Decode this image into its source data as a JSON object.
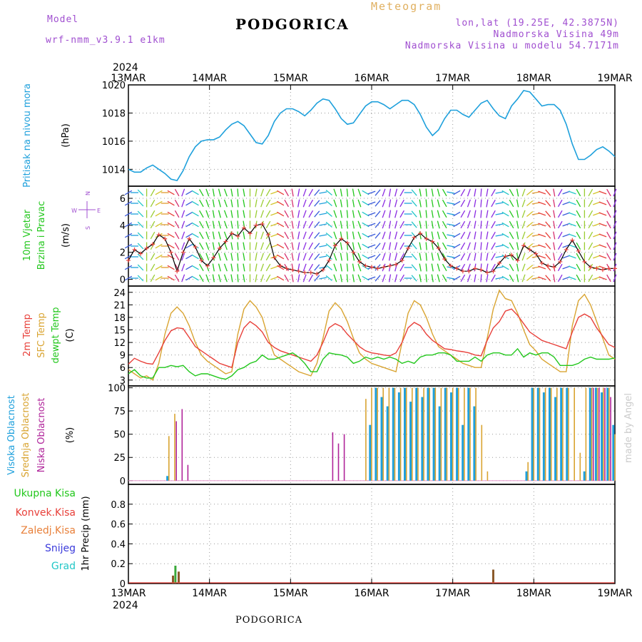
{
  "header": {
    "model_label": "Model",
    "model_name": "wrf-nmm_v3.9.1 e1km",
    "station": "PODGORICA",
    "product": "Meteogram",
    "coords": "lon,lat (19.25E, 42.3875N)",
    "elevation": "Nadmorska Visina 49m",
    "model_elevation": "Nadmorska Visina u modelu 54.7171m",
    "footer_station": "PODGORICA",
    "credit": "made by Angel"
  },
  "colors": {
    "pressure": "#1ea0dc",
    "temp2m": "#e8403a",
    "sfc_temp": "#d9a431",
    "dewpt": "#22c71c",
    "high_cloud": "#1ea0dc",
    "mid_cloud": "#d9a431",
    "low_cloud": "#b0249a",
    "model_label": "#a04fd0",
    "product": "#e0b060"
  },
  "chart_data": [
    {
      "type": "line",
      "panel": "pressure",
      "year": "2024",
      "x_tick_labels": [
        "13MAR",
        "14MAR",
        "15MAR",
        "16MAR",
        "17MAR",
        "18MAR",
        "19MAR"
      ],
      "ylabel_left": "Pritisak na nivou mora",
      "ylabel_unit": "(hPa)",
      "ylim": [
        1012.8,
        1020
      ],
      "y_ticks": [
        1014,
        1016,
        1018,
        1020
      ],
      "grid": true,
      "series": [
        {
          "values": [
            1014.0,
            1013.8,
            1013.8,
            1014.1,
            1014.3,
            1014.0,
            1013.7,
            1013.3,
            1013.2,
            1013.9,
            1014.9,
            1015.6,
            1016.0,
            1016.1,
            1016.1,
            1016.3,
            1016.8,
            1017.2,
            1017.4,
            1017.1,
            1016.5,
            1015.9,
            1015.8,
            1016.4,
            1017.4,
            1018.0,
            1018.3,
            1018.3,
            1018.1,
            1017.8,
            1018.2,
            1018.7,
            1019.0,
            1018.9,
            1018.3,
            1017.6,
            1017.2,
            1017.3,
            1017.9,
            1018.5,
            1018.8,
            1018.8,
            1018.6,
            1018.3,
            1018.6,
            1018.9,
            1018.9,
            1018.6,
            1017.9,
            1017.0,
            1016.4,
            1016.8,
            1017.6,
            1018.2,
            1018.2,
            1017.9,
            1017.7,
            1018.2,
            1018.7,
            1018.9,
            1018.3,
            1017.8,
            1017.6,
            1018.5,
            1019.0,
            1019.6,
            1019.5,
            1019.0,
            1018.5,
            1018.6,
            1018.6,
            1018.2,
            1017.2,
            1015.8,
            1014.7,
            1014.7,
            1015.0,
            1015.4,
            1015.6,
            1015.3,
            1014.9
          ]
        }
      ]
    },
    {
      "type": "line",
      "panel": "wind",
      "ylabel_left": [
        "10m Vjetar",
        "Brzina i Pravac"
      ],
      "ylabel_unit": "(m/s)",
      "compass_labels": {
        "n": "N",
        "s": "S",
        "e": "E",
        "w": "W"
      },
      "ylim": [
        -0.5,
        6.9
      ],
      "y_ticks": [
        0,
        2,
        4,
        6
      ],
      "grid": true,
      "series": [
        {
          "name": "10m wind speed",
          "values": [
            1.4,
            2.2,
            1.9,
            2.3,
            2.6,
            3.3,
            3.0,
            2.0,
            0.6,
            2.0,
            3.0,
            2.4,
            1.4,
            1.0,
            1.6,
            2.3,
            2.8,
            3.4,
            3.2,
            3.8,
            3.4,
            4.0,
            4.1,
            3.3,
            1.6,
            1.0,
            0.8,
            0.7,
            0.6,
            0.5,
            0.5,
            0.4,
            0.7,
            1.4,
            2.5,
            3.0,
            2.7,
            2.0,
            1.3,
            1.0,
            0.9,
            0.8,
            0.9,
            1.0,
            1.1,
            1.4,
            2.3,
            3.1,
            3.4,
            3.0,
            2.8,
            2.3,
            1.5,
            1.0,
            0.8,
            0.6,
            0.6,
            0.8,
            0.7,
            0.5,
            0.6,
            1.2,
            1.7,
            1.8,
            1.4,
            2.5,
            2.2,
            1.9,
            1.2,
            1.0,
            0.9,
            1.3,
            2.2,
            2.9,
            2.1,
            1.3,
            0.9,
            0.8,
            0.7,
            0.8,
            0.8
          ]
        },
        {
          "name": "10m wind direction (deg)",
          "values": [
            60,
            90,
            135,
            180,
            210,
            240,
            270,
            300,
            330,
            20,
            60,
            120,
            150,
            160,
            170,
            165,
            160,
            170,
            175,
            170,
            180,
            190,
            200,
            210,
            250,
            300,
            330,
            350,
            10,
            20,
            30,
            40,
            80,
            130,
            160,
            170,
            175,
            170,
            160,
            120,
            70,
            40,
            20,
            10,
            15,
            30,
            90,
            140,
            170,
            175,
            170,
            165,
            150,
            100,
            60,
            30,
            20,
            10,
            5,
            10,
            30,
            80,
            120,
            150,
            170,
            200,
            230,
            260,
            290,
            320,
            350,
            30,
            70,
            110,
            150,
            180,
            210,
            250,
            290,
            330,
            20
          ]
        }
      ]
    },
    {
      "type": "line",
      "panel": "temperature",
      "ylabel_left": [
        "2m Temp",
        "SFC Temp",
        "dewpt Temp"
      ],
      "ylabel_unit": "(C)",
      "ylim": [
        1.6,
        25.5
      ],
      "y_ticks": [
        3,
        6,
        9,
        12,
        15,
        18,
        21,
        24
      ],
      "grid": true,
      "series": [
        {
          "name": "2m Temp",
          "values": [
            6.8,
            8.2,
            7.5,
            7.0,
            6.8,
            9.5,
            12.5,
            14.8,
            15.5,
            15.3,
            13.2,
            11.0,
            10.0,
            9.0,
            8.0,
            7.0,
            6.5,
            6.0,
            12.0,
            15.5,
            17.0,
            16.0,
            14.5,
            12.0,
            10.8,
            10.0,
            9.5,
            9.0,
            8.5,
            8.0,
            7.5,
            9.0,
            12.0,
            15.5,
            16.5,
            15.8,
            14.0,
            12.5,
            11.0,
            10.0,
            9.5,
            9.3,
            9.0,
            8.8,
            9.5,
            12.0,
            15.5,
            16.8,
            16.0,
            14.0,
            12.5,
            11.5,
            10.5,
            10.3,
            10.0,
            9.8,
            9.5,
            9.0,
            8.8,
            12.5,
            15.5,
            17.0,
            19.5,
            20.0,
            18.5,
            16.5,
            14.5,
            13.5,
            12.5,
            12.0,
            11.5,
            11.0,
            10.5,
            14.5,
            18.0,
            18.8,
            18.0,
            15.5,
            13.5,
            11.5,
            10.8
          ]
        },
        {
          "name": "SFC Temp",
          "values": [
            5.5,
            4.5,
            3.5,
            4.0,
            3.0,
            7.0,
            14.0,
            19.0,
            20.5,
            19.0,
            16.0,
            12.0,
            9.0,
            7.5,
            6.5,
            5.5,
            4.5,
            5.0,
            14.0,
            20.0,
            22.0,
            20.5,
            18.0,
            13.0,
            9.0,
            8.0,
            7.0,
            6.0,
            5.0,
            4.5,
            4.0,
            7.0,
            13.0,
            19.5,
            21.5,
            20.0,
            17.0,
            13.0,
            9.5,
            8.0,
            7.0,
            6.5,
            6.0,
            5.5,
            5.0,
            12.0,
            19.0,
            22.0,
            21.0,
            18.0,
            14.0,
            11.0,
            10.0,
            9.0,
            8.0,
            7.0,
            6.5,
            6.0,
            6.0,
            13.0,
            20.0,
            24.5,
            22.5,
            22.0,
            19.0,
            15.0,
            11.5,
            10.0,
            8.0,
            7.0,
            6.0,
            5.0,
            5.0,
            16.0,
            22.0,
            23.5,
            21.0,
            17.0,
            13.0,
            9.0,
            8.0
          ]
        },
        {
          "name": "dewpt Temp",
          "values": [
            4.5,
            5.5,
            4.0,
            3.5,
            3.5,
            6.0,
            6.0,
            6.5,
            6.2,
            6.5,
            5.0,
            4.0,
            4.5,
            4.5,
            4.0,
            3.5,
            3.2,
            4.0,
            5.5,
            6.0,
            7.0,
            7.5,
            9.0,
            8.0,
            8.0,
            8.5,
            9.0,
            9.5,
            8.5,
            7.0,
            5.0,
            5.0,
            8.0,
            9.5,
            9.2,
            9.0,
            8.5,
            7.0,
            7.5,
            8.5,
            8.0,
            8.5,
            8.0,
            8.5,
            8.0,
            7.0,
            7.5,
            7.0,
            8.5,
            9.0,
            9.0,
            9.5,
            9.5,
            9.0,
            7.5,
            7.5,
            7.5,
            8.5,
            7.5,
            9.0,
            9.5,
            9.5,
            9.0,
            9.0,
            10.5,
            8.5,
            9.5,
            9.0,
            9.5,
            9.5,
            8.5,
            6.5,
            6.5,
            6.5,
            7.0,
            8.0,
            8.5,
            8.0,
            8.0,
            8.0,
            8.3
          ]
        }
      ]
    },
    {
      "type": "bar",
      "panel": "clouds",
      "ylabel_left": [
        "Visoka Oblacnost",
        "Srednja Oblacnost",
        "Niska Oblacnost"
      ],
      "ylabel_unit": "(%)",
      "ylim": [
        -4,
        102
      ],
      "y_ticks": [
        0,
        25,
        50,
        75,
        100
      ],
      "grid": true,
      "series": [
        {
          "name": "Visoka Oblacnost",
          "values": [
            0,
            0,
            0,
            0,
            0,
            0,
            0,
            5,
            0,
            0,
            0,
            0,
            0,
            0,
            0,
            0,
            0,
            0,
            0,
            0,
            0,
            0,
            0,
            0,
            0,
            0,
            0,
            0,
            0,
            0,
            0,
            0,
            0,
            0,
            0,
            0,
            0,
            0,
            0,
            0,
            0,
            0,
            60,
            100,
            90,
            80,
            100,
            95,
            100,
            85,
            100,
            90,
            100,
            100,
            80,
            100,
            95,
            100,
            60,
            100,
            80,
            0,
            0,
            0,
            0,
            0,
            0,
            0,
            0,
            10,
            100,
            100,
            95,
            100,
            90,
            100,
            100,
            0,
            0,
            10,
            100,
            100,
            95,
            100,
            60
          ]
        },
        {
          "name": "Srednja Oblacnost",
          "values": [
            0,
            0,
            0,
            0,
            0,
            0,
            0,
            48,
            72,
            0,
            0,
            0,
            0,
            0,
            0,
            0,
            0,
            0,
            0,
            0,
            0,
            0,
            0,
            0,
            0,
            0,
            0,
            0,
            0,
            0,
            0,
            0,
            0,
            0,
            0,
            0,
            0,
            0,
            0,
            0,
            0,
            88,
            100,
            100,
            100,
            100,
            100,
            100,
            100,
            100,
            100,
            100,
            100,
            100,
            100,
            100,
            100,
            100,
            100,
            100,
            100,
            60,
            10,
            0,
            0,
            0,
            0,
            0,
            0,
            20,
            100,
            100,
            100,
            100,
            100,
            100,
            100,
            100,
            30,
            100,
            100,
            100,
            100,
            100,
            50
          ]
        },
        {
          "name": "Niska Oblacnost",
          "values": [
            0,
            0,
            0,
            0,
            0,
            0,
            0,
            0,
            64,
            77,
            17,
            0,
            0,
            0,
            0,
            0,
            0,
            0,
            0,
            0,
            0,
            0,
            0,
            0,
            0,
            0,
            0,
            0,
            0,
            0,
            0,
            0,
            0,
            0,
            0,
            52,
            40,
            50,
            0,
            0,
            0,
            0,
            0,
            0,
            0,
            0,
            0,
            0,
            0,
            0,
            0,
            0,
            0,
            0,
            0,
            0,
            0,
            0,
            0,
            0,
            0,
            0,
            0,
            0,
            0,
            0,
            0,
            0,
            0,
            0,
            0,
            0,
            0,
            0,
            0,
            0,
            0,
            0,
            0,
            0,
            100,
            100,
            100,
            90,
            0
          ]
        }
      ],
      "x_marker_times": [
        0.0,
        0.0,
        0.0,
        0.0,
        0.0,
        0.0,
        0.0,
        0.48,
        0.52,
        0.72,
        0.77,
        0.0,
        0.0,
        0.0,
        0.0,
        0.0,
        0.0,
        0.0,
        0.0,
        0.0,
        0.0,
        0.0,
        0.0,
        0.0,
        0.0,
        0.0,
        0.0,
        0.0,
        0.0,
        0.0,
        0.0,
        0.0,
        0.0,
        0.0,
        0.0,
        0.0,
        0.0,
        0.0,
        0.0,
        0.0,
        0.0,
        0.0,
        0.0,
        0.0,
        0.0,
        0.0,
        0.0,
        0.0,
        0.0,
        0.0,
        0.0,
        0.0,
        0.0,
        0.0,
        0.0,
        0.0,
        0.0,
        0.0,
        0.0,
        0.0,
        0.0,
        0.0,
        0.0,
        0.0,
        0.0,
        0.0,
        0.0,
        0.0,
        0.0,
        0.0,
        0.0,
        0.0,
        0.0,
        0.0,
        0.0,
        0.0,
        0.0,
        0.0,
        0.0,
        0.0,
        0.0,
        0.0,
        0.0,
        0.0,
        0.0
      ]
    },
    {
      "type": "bar",
      "panel": "precip",
      "year": "2024",
      "x_tick_labels": [
        "13MAR",
        "14MAR",
        "15MAR",
        "16MAR",
        "17MAR",
        "18MAR",
        "19MAR"
      ],
      "ylabel_left": [
        "Ukupna Kisa",
        "Konvek.Kisa",
        "Zaledj.Kisa",
        "Snijeg",
        "Grad"
      ],
      "ylabel_unit": "1hr Precip (mm)",
      "ylim": [
        0,
        1.0
      ],
      "y_ticks": [
        0,
        0.2,
        0.4,
        0.6,
        0.8
      ],
      "grid": true,
      "series": [
        {
          "name": "Ukupna Kisa",
          "x": [
            13.55,
            13.58,
            13.62,
            17.5
          ],
          "values": [
            0.08,
            0.18,
            0.12,
            0.14
          ]
        }
      ]
    }
  ]
}
